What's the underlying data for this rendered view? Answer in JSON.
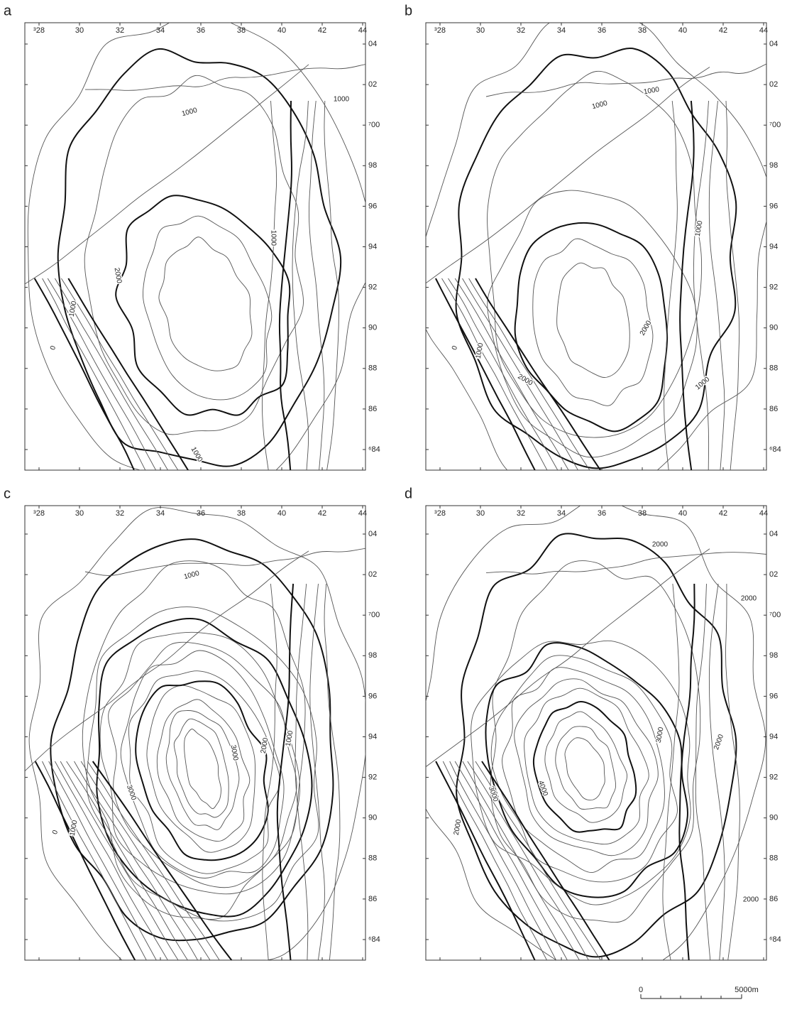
{
  "panels": [
    {
      "label": "a",
      "x_ticks": [
        "³28",
        "30",
        "32",
        "34",
        "36",
        "38",
        "40",
        "42",
        "44"
      ],
      "y_ticks": [
        "04",
        "02",
        "⁷00",
        "98",
        "96",
        "94",
        "92",
        "90",
        "88",
        "86",
        "⁶84"
      ],
      "contour_labels": [
        "1000",
        "1000",
        "2000",
        "1000",
        "1000",
        "0",
        "1000"
      ]
    },
    {
      "label": "b",
      "x_ticks": [
        "³28",
        "30",
        "32",
        "34",
        "36",
        "38",
        "40",
        "42",
        "44"
      ],
      "y_ticks": [
        "04",
        "02",
        "⁷00",
        "98",
        "96",
        "94",
        "92",
        "90",
        "88",
        "86",
        "⁶84"
      ],
      "contour_labels": [
        "1000",
        "1000",
        "1000",
        "2000",
        "1000",
        "2000",
        "0",
        "1000"
      ]
    },
    {
      "label": "c",
      "x_ticks": [
        "³28",
        "30",
        "32",
        "34",
        "36",
        "38",
        "40",
        "42",
        "44"
      ],
      "y_ticks": [
        "04",
        "02",
        "⁷00",
        "98",
        "96",
        "94",
        "92",
        "90",
        "88",
        "86",
        "⁶84"
      ],
      "contour_labels": [
        "1000",
        "3000",
        "2000",
        "1000",
        "3000",
        "1000",
        "0"
      ]
    },
    {
      "label": "d",
      "x_ticks": [
        "³28",
        "30",
        "32",
        "34",
        "36",
        "38",
        "40",
        "42",
        "44"
      ],
      "y_ticks": [
        "04",
        "02",
        "⁷00",
        "98",
        "96",
        "94",
        "92",
        "90",
        "88",
        "86",
        "⁶84"
      ],
      "contour_labels": [
        "2000",
        "2000",
        "3000",
        "2000",
        "4000",
        "3000",
        "2000",
        "2000"
      ]
    }
  ],
  "scale_bar": {
    "start": "0",
    "end": "5000m"
  }
}
